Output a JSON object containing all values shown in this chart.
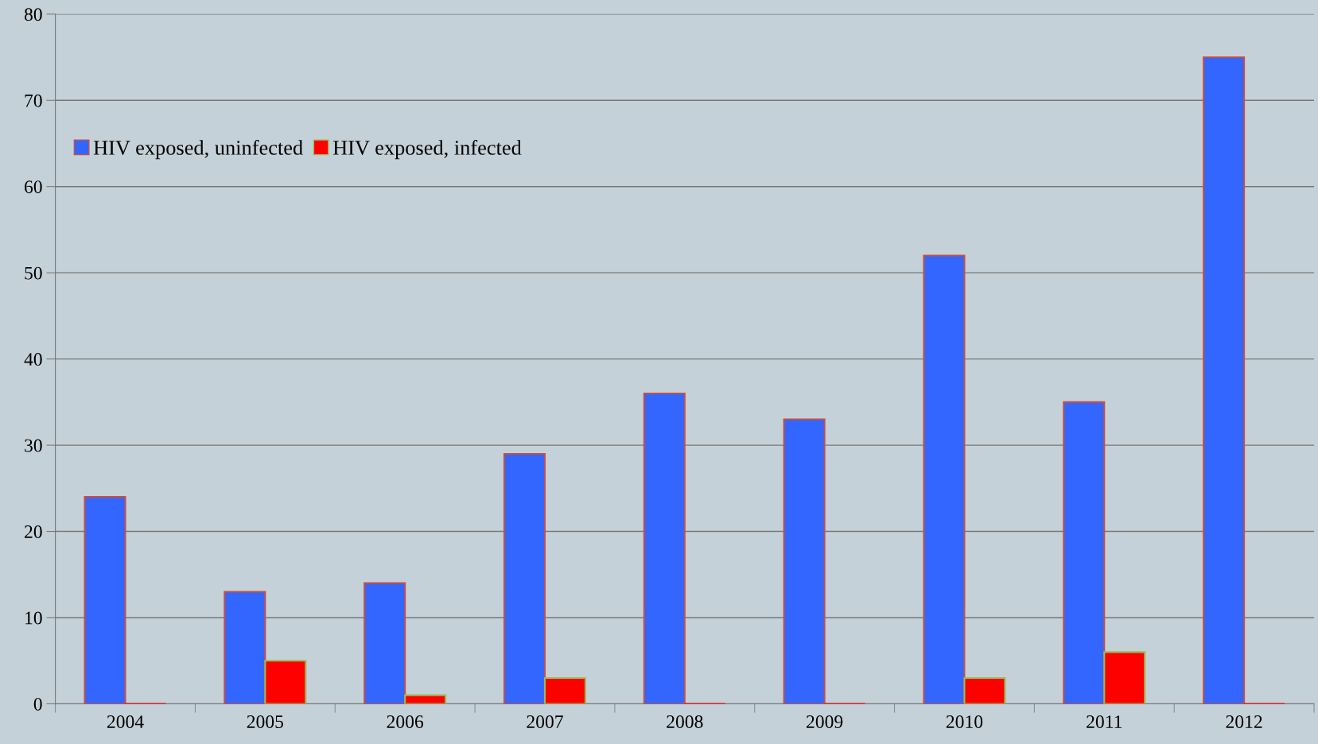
{
  "chart_data": {
    "type": "bar",
    "categories": [
      "2004",
      "2005",
      "2006",
      "2007",
      "2008",
      "2009",
      "2010",
      "2011",
      "2012"
    ],
    "series": [
      {
        "name": "HIV exposed, uninfected",
        "color": "#3366ff",
        "values": [
          24,
          13,
          14,
          29,
          36,
          33,
          52,
          35,
          75
        ]
      },
      {
        "name": "HIV exposed, infected",
        "color": "#ff0000",
        "values": [
          0,
          5,
          1,
          3,
          0,
          0,
          3,
          6,
          0
        ]
      }
    ],
    "ylim": [
      0,
      80
    ],
    "yticks": [
      0,
      10,
      20,
      30,
      40,
      50,
      60,
      70,
      80
    ],
    "grid": "y",
    "legend": "top left"
  }
}
